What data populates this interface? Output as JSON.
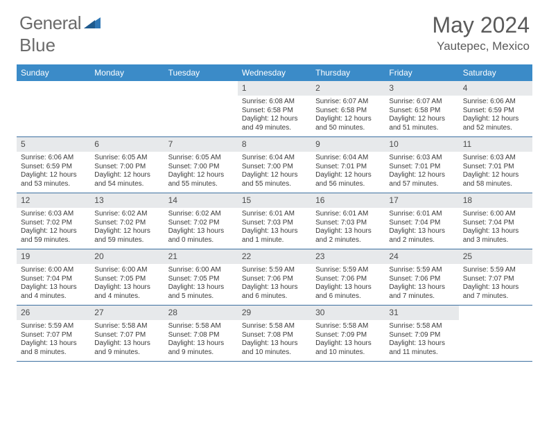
{
  "logo": {
    "word1": "General",
    "word2": "Blue"
  },
  "title": "May 2024",
  "location": "Yautepec, Mexico",
  "colors": {
    "header_bg": "#3b8bc8",
    "header_text": "#ffffff",
    "daynum_bg": "#e7e9eb",
    "row_border": "#3b6fa0",
    "body_text": "#3a3a3a",
    "title_text": "#5a5a5a",
    "logo_text": "#6b6b6b",
    "logo_accent": "#2f77b5"
  },
  "day_names": [
    "Sunday",
    "Monday",
    "Tuesday",
    "Wednesday",
    "Thursday",
    "Friday",
    "Saturday"
  ],
  "weeks": [
    [
      {
        "empty": true
      },
      {
        "empty": true
      },
      {
        "empty": true
      },
      {
        "d": "1",
        "sr": "Sunrise: 6:08 AM",
        "ss": "Sunset: 6:58 PM",
        "dl1": "Daylight: 12 hours",
        "dl2": "and 49 minutes."
      },
      {
        "d": "2",
        "sr": "Sunrise: 6:07 AM",
        "ss": "Sunset: 6:58 PM",
        "dl1": "Daylight: 12 hours",
        "dl2": "and 50 minutes."
      },
      {
        "d": "3",
        "sr": "Sunrise: 6:07 AM",
        "ss": "Sunset: 6:58 PM",
        "dl1": "Daylight: 12 hours",
        "dl2": "and 51 minutes."
      },
      {
        "d": "4",
        "sr": "Sunrise: 6:06 AM",
        "ss": "Sunset: 6:59 PM",
        "dl1": "Daylight: 12 hours",
        "dl2": "and 52 minutes."
      }
    ],
    [
      {
        "d": "5",
        "sr": "Sunrise: 6:06 AM",
        "ss": "Sunset: 6:59 PM",
        "dl1": "Daylight: 12 hours",
        "dl2": "and 53 minutes."
      },
      {
        "d": "6",
        "sr": "Sunrise: 6:05 AM",
        "ss": "Sunset: 7:00 PM",
        "dl1": "Daylight: 12 hours",
        "dl2": "and 54 minutes."
      },
      {
        "d": "7",
        "sr": "Sunrise: 6:05 AM",
        "ss": "Sunset: 7:00 PM",
        "dl1": "Daylight: 12 hours",
        "dl2": "and 55 minutes."
      },
      {
        "d": "8",
        "sr": "Sunrise: 6:04 AM",
        "ss": "Sunset: 7:00 PM",
        "dl1": "Daylight: 12 hours",
        "dl2": "and 55 minutes."
      },
      {
        "d": "9",
        "sr": "Sunrise: 6:04 AM",
        "ss": "Sunset: 7:01 PM",
        "dl1": "Daylight: 12 hours",
        "dl2": "and 56 minutes."
      },
      {
        "d": "10",
        "sr": "Sunrise: 6:03 AM",
        "ss": "Sunset: 7:01 PM",
        "dl1": "Daylight: 12 hours",
        "dl2": "and 57 minutes."
      },
      {
        "d": "11",
        "sr": "Sunrise: 6:03 AM",
        "ss": "Sunset: 7:01 PM",
        "dl1": "Daylight: 12 hours",
        "dl2": "and 58 minutes."
      }
    ],
    [
      {
        "d": "12",
        "sr": "Sunrise: 6:03 AM",
        "ss": "Sunset: 7:02 PM",
        "dl1": "Daylight: 12 hours",
        "dl2": "and 59 minutes."
      },
      {
        "d": "13",
        "sr": "Sunrise: 6:02 AM",
        "ss": "Sunset: 7:02 PM",
        "dl1": "Daylight: 12 hours",
        "dl2": "and 59 minutes."
      },
      {
        "d": "14",
        "sr": "Sunrise: 6:02 AM",
        "ss": "Sunset: 7:02 PM",
        "dl1": "Daylight: 13 hours",
        "dl2": "and 0 minutes."
      },
      {
        "d": "15",
        "sr": "Sunrise: 6:01 AM",
        "ss": "Sunset: 7:03 PM",
        "dl1": "Daylight: 13 hours",
        "dl2": "and 1 minute."
      },
      {
        "d": "16",
        "sr": "Sunrise: 6:01 AM",
        "ss": "Sunset: 7:03 PM",
        "dl1": "Daylight: 13 hours",
        "dl2": "and 2 minutes."
      },
      {
        "d": "17",
        "sr": "Sunrise: 6:01 AM",
        "ss": "Sunset: 7:04 PM",
        "dl1": "Daylight: 13 hours",
        "dl2": "and 2 minutes."
      },
      {
        "d": "18",
        "sr": "Sunrise: 6:00 AM",
        "ss": "Sunset: 7:04 PM",
        "dl1": "Daylight: 13 hours",
        "dl2": "and 3 minutes."
      }
    ],
    [
      {
        "d": "19",
        "sr": "Sunrise: 6:00 AM",
        "ss": "Sunset: 7:04 PM",
        "dl1": "Daylight: 13 hours",
        "dl2": "and 4 minutes."
      },
      {
        "d": "20",
        "sr": "Sunrise: 6:00 AM",
        "ss": "Sunset: 7:05 PM",
        "dl1": "Daylight: 13 hours",
        "dl2": "and 4 minutes."
      },
      {
        "d": "21",
        "sr": "Sunrise: 6:00 AM",
        "ss": "Sunset: 7:05 PM",
        "dl1": "Daylight: 13 hours",
        "dl2": "and 5 minutes."
      },
      {
        "d": "22",
        "sr": "Sunrise: 5:59 AM",
        "ss": "Sunset: 7:06 PM",
        "dl1": "Daylight: 13 hours",
        "dl2": "and 6 minutes."
      },
      {
        "d": "23",
        "sr": "Sunrise: 5:59 AM",
        "ss": "Sunset: 7:06 PM",
        "dl1": "Daylight: 13 hours",
        "dl2": "and 6 minutes."
      },
      {
        "d": "24",
        "sr": "Sunrise: 5:59 AM",
        "ss": "Sunset: 7:06 PM",
        "dl1": "Daylight: 13 hours",
        "dl2": "and 7 minutes."
      },
      {
        "d": "25",
        "sr": "Sunrise: 5:59 AM",
        "ss": "Sunset: 7:07 PM",
        "dl1": "Daylight: 13 hours",
        "dl2": "and 7 minutes."
      }
    ],
    [
      {
        "d": "26",
        "sr": "Sunrise: 5:59 AM",
        "ss": "Sunset: 7:07 PM",
        "dl1": "Daylight: 13 hours",
        "dl2": "and 8 minutes."
      },
      {
        "d": "27",
        "sr": "Sunrise: 5:58 AM",
        "ss": "Sunset: 7:07 PM",
        "dl1": "Daylight: 13 hours",
        "dl2": "and 9 minutes."
      },
      {
        "d": "28",
        "sr": "Sunrise: 5:58 AM",
        "ss": "Sunset: 7:08 PM",
        "dl1": "Daylight: 13 hours",
        "dl2": "and 9 minutes."
      },
      {
        "d": "29",
        "sr": "Sunrise: 5:58 AM",
        "ss": "Sunset: 7:08 PM",
        "dl1": "Daylight: 13 hours",
        "dl2": "and 10 minutes."
      },
      {
        "d": "30",
        "sr": "Sunrise: 5:58 AM",
        "ss": "Sunset: 7:09 PM",
        "dl1": "Daylight: 13 hours",
        "dl2": "and 10 minutes."
      },
      {
        "d": "31",
        "sr": "Sunrise: 5:58 AM",
        "ss": "Sunset: 7:09 PM",
        "dl1": "Daylight: 13 hours",
        "dl2": "and 11 minutes."
      },
      {
        "empty": true
      }
    ]
  ]
}
